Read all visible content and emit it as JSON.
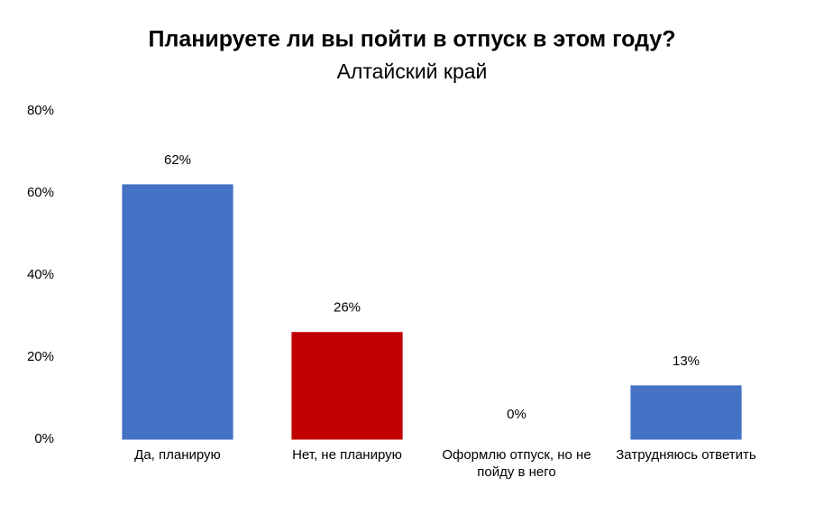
{
  "chart_data": {
    "type": "bar",
    "title": "Планируете ли вы пойти в отпуск в этом году?",
    "subtitle": "Алтайский край",
    "categories": [
      "Да, планирую",
      "Нет, не планирую",
      "Оформлю отпуск, но не пойду в него",
      "Затрудняюсь ответить"
    ],
    "values": [
      62,
      26,
      0,
      13
    ],
    "value_labels": [
      "62%",
      "26%",
      "0%",
      "13%"
    ],
    "colors": [
      "#4472c4",
      "#c00000",
      "#c00000",
      "#4472c4"
    ],
    "ylim": [
      0,
      80
    ],
    "yticks": [
      {
        "value": 0,
        "label": "0%"
      },
      {
        "value": 20,
        "label": "20%"
      },
      {
        "value": 40,
        "label": "40%"
      },
      {
        "value": 60,
        "label": "60%"
      },
      {
        "value": 80,
        "label": "80%"
      }
    ],
    "grid": false
  }
}
